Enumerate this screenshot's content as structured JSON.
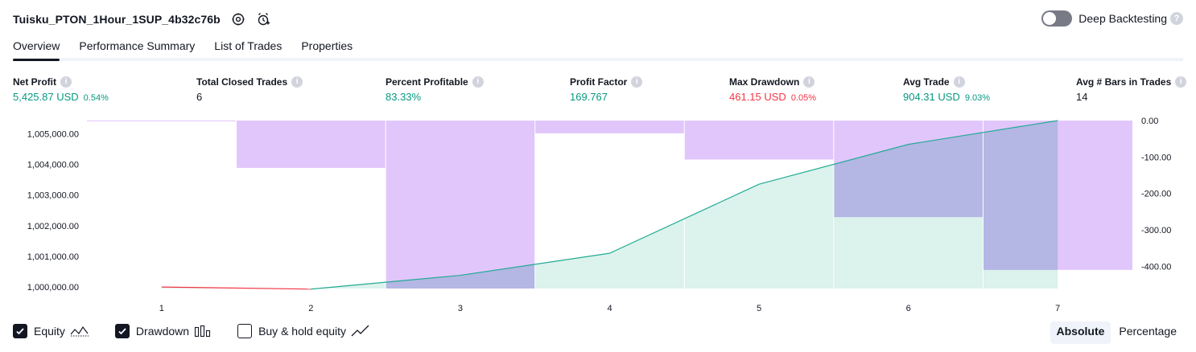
{
  "header": {
    "strategy_name": "Tuisku_PTON_1Hour_1SUP_4b32c76b",
    "deep_backtesting_label": "Deep Backtesting",
    "deep_backtesting_enabled": false
  },
  "tabs": [
    {
      "label": "Overview",
      "active": true
    },
    {
      "label": "Performance Summary",
      "active": false
    },
    {
      "label": "List of Trades",
      "active": false
    },
    {
      "label": "Properties",
      "active": false
    }
  ],
  "metrics": {
    "net_profit": {
      "label": "Net Profit",
      "value": "5,425.87 USD",
      "pct": "0.54%"
    },
    "total_closed_trades": {
      "label": "Total Closed Trades",
      "value": "6"
    },
    "percent_profitable": {
      "label": "Percent Profitable",
      "value": "83.33%"
    },
    "profit_factor": {
      "label": "Profit Factor",
      "value": "169.767"
    },
    "max_drawdown": {
      "label": "Max Drawdown",
      "value": "461.15 USD",
      "pct": "0.05%"
    },
    "avg_trade": {
      "label": "Avg Trade",
      "value": "904.31 USD",
      "pct": "9.03%"
    },
    "avg_bars": {
      "label": "Avg # Bars in Trades",
      "value": "14"
    }
  },
  "colors": {
    "positive": "#089981",
    "negative": "#f23645",
    "equity_line": "#22ab94",
    "equity_fill": "#dcf2ec",
    "drawdown_fill": "#e1c6fb",
    "overlap_fill": "#b4b6e4"
  },
  "chart_data": {
    "type": "area",
    "x": [
      1,
      2,
      3,
      4,
      5,
      6,
      7
    ],
    "equity": {
      "name": "Equity",
      "values": [
        1000000,
        999930,
        1000380,
        1001100,
        1003350,
        1004650,
        1005425.87
      ],
      "ylim": [
        999950,
        1005425.87
      ],
      "ticks": [
        "1,005,000.00",
        "1,004,000.00",
        "1,003,000.00",
        "1,002,000.00",
        "1,001,000.00",
        "1,000,000.00"
      ],
      "tick_values": [
        1005000,
        1004000,
        1003000,
        1002000,
        1001000,
        1000000
      ]
    },
    "drawdown": {
      "name": "Drawdown",
      "values": [
        -1,
        -130,
        -461.15,
        -35,
        -107,
        -265,
        -410
      ],
      "ylim": [
        -461.15,
        0
      ],
      "ticks": [
        "0.00",
        "-100.00",
        "-200.00",
        "-300.00",
        "-400.00"
      ],
      "tick_values": [
        0,
        -100,
        -200,
        -300,
        -400
      ]
    },
    "x_ticks": [
      "1",
      "2",
      "3",
      "4",
      "5",
      "6",
      "7"
    ]
  },
  "legend": [
    {
      "label": "Equity",
      "checked": true,
      "icon": "equity-line-icon"
    },
    {
      "label": "Drawdown",
      "checked": true,
      "icon": "drawdown-bars-icon"
    },
    {
      "label": "Buy & hold equity",
      "checked": false,
      "icon": "buy-hold-line-icon"
    }
  ],
  "modes": [
    {
      "label": "Absolute",
      "active": true
    },
    {
      "label": "Percentage",
      "active": false
    }
  ]
}
